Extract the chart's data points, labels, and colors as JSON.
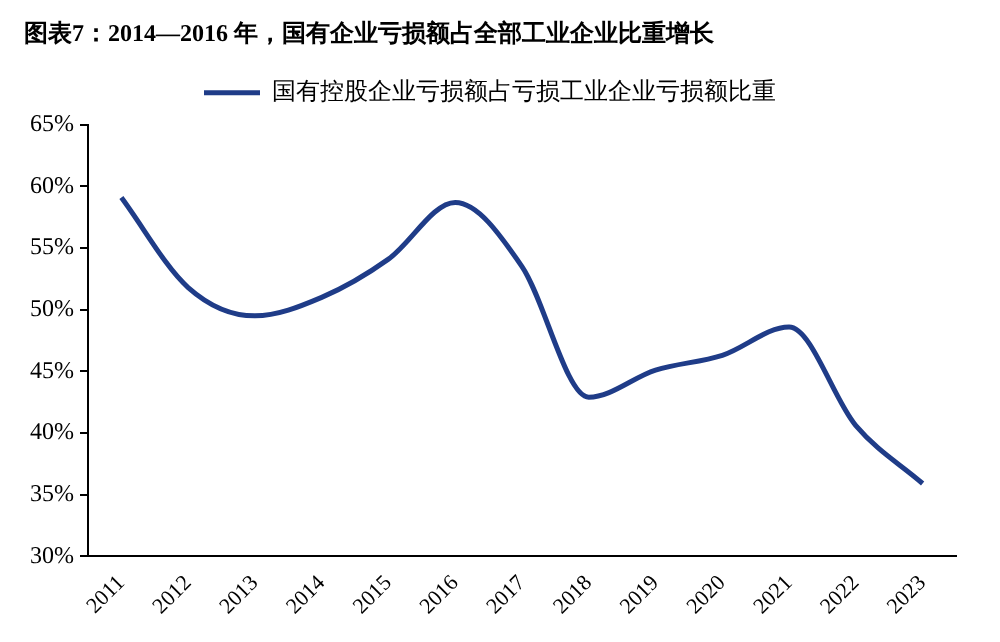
{
  "chart_data": {
    "type": "line",
    "title": "图表7：2014—2016 年，国有企业亏损额占全部工业企业比重增长",
    "categories": [
      "2011",
      "2012",
      "2013",
      "2014",
      "2015",
      "2016",
      "2017",
      "2018",
      "2019",
      "2020",
      "2021",
      "2022",
      "2023"
    ],
    "series": [
      {
        "name": "国有控股企业亏损额占亏损工业企业亏损额比重",
        "color": "#1f3c88",
        "values": [
          59.1,
          51.8,
          49.5,
          51,
          54.1,
          58.7,
          53.5,
          42.9,
          45.1,
          46.3,
          48.6,
          40.6,
          35.9
        ]
      }
    ],
    "ylim": [
      30,
      65
    ],
    "yticks": [
      {
        "value": 30,
        "label": "30%"
      },
      {
        "value": 35,
        "label": "35%"
      },
      {
        "value": 40,
        "label": "40%"
      },
      {
        "value": 45,
        "label": "45%"
      },
      {
        "value": 50,
        "label": "50%"
      },
      {
        "value": 55,
        "label": "55%"
      },
      {
        "value": 60,
        "label": "60%"
      },
      {
        "value": 65,
        "label": "65%"
      }
    ],
    "grid": false,
    "legend": "top",
    "marker": "none",
    "line_style": "solid"
  }
}
